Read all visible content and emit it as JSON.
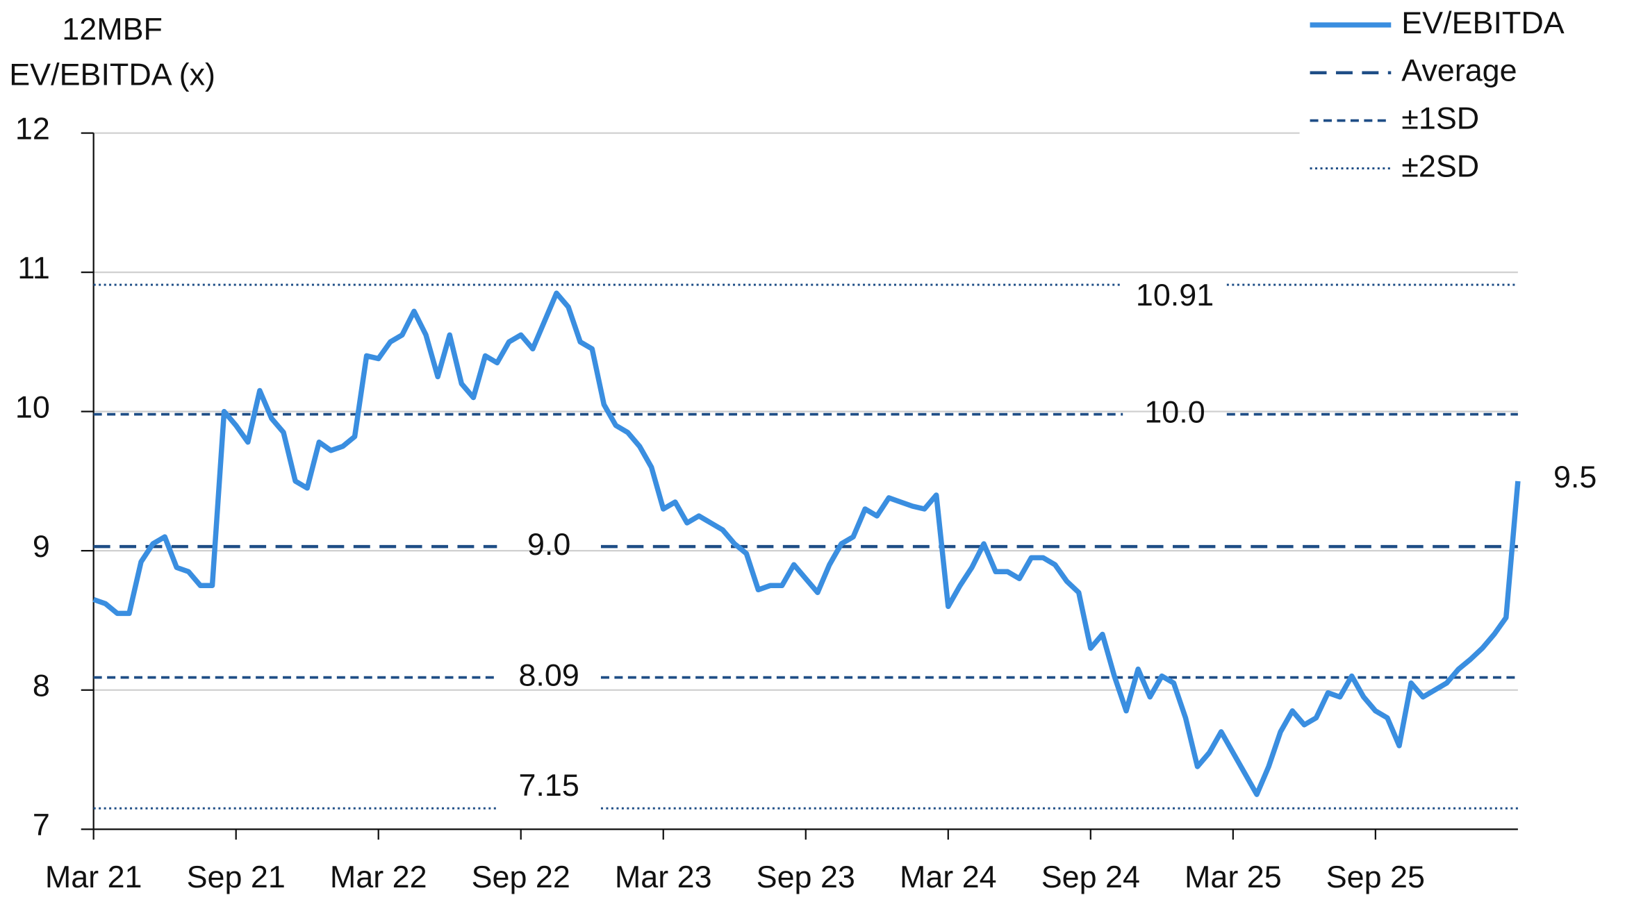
{
  "chart_data": {
    "type": "line",
    "y_label_lines": [
      "12MBF",
      "EV/EBITDA (x)"
    ],
    "categories": [
      "Mar 21",
      null,
      null,
      null,
      null,
      null,
      null,
      null,
      null,
      null,
      null,
      null,
      "Sep 21",
      null,
      null,
      null,
      null,
      null,
      null,
      null,
      null,
      null,
      null,
      null,
      "Mar 22",
      null,
      null,
      null,
      null,
      null,
      null,
      null,
      null,
      null,
      null,
      null,
      "Sep 22",
      null,
      null,
      null,
      null,
      null,
      null,
      null,
      null,
      null,
      null,
      null,
      "Mar 23",
      null,
      null,
      null,
      null,
      null,
      null,
      null,
      null,
      null,
      null,
      null,
      "Sep 23",
      null,
      null,
      null,
      null,
      null,
      null,
      null,
      null,
      null,
      null,
      null,
      "Mar 24",
      null,
      null,
      null,
      null,
      null,
      null,
      null,
      null,
      null,
      null,
      null,
      "Sep 24",
      null,
      null,
      null,
      null,
      null,
      null,
      null,
      null,
      null,
      null,
      null,
      "Mar 25",
      null,
      null,
      null,
      null,
      null,
      null,
      null,
      null,
      null,
      null,
      null,
      "Sep 25",
      null,
      null,
      null,
      null,
      null,
      null,
      null,
      null,
      null,
      null,
      null,
      null
    ],
    "series": [
      {
        "name": "EV/EBITDA",
        "color": "#3a8ee0",
        "values": [
          8.65,
          8.62,
          8.55,
          8.55,
          8.92,
          9.05,
          9.1,
          8.88,
          8.85,
          8.75,
          8.75,
          10.0,
          9.9,
          9.78,
          10.15,
          9.95,
          9.85,
          9.5,
          9.45,
          9.78,
          9.72,
          9.75,
          9.82,
          10.4,
          10.38,
          10.5,
          10.55,
          10.72,
          10.55,
          10.25,
          10.55,
          10.2,
          10.1,
          10.4,
          10.35,
          10.5,
          10.55,
          10.45,
          10.65,
          10.85,
          10.75,
          10.5,
          10.45,
          10.05,
          9.9,
          9.85,
          9.75,
          9.6,
          9.3,
          9.35,
          9.2,
          9.25,
          9.2,
          9.15,
          9.05,
          8.98,
          8.72,
          8.75,
          8.75,
          8.9,
          8.8,
          8.7,
          8.9,
          9.05,
          9.1,
          9.3,
          9.25,
          9.38,
          9.35,
          9.32,
          9.3,
          9.4,
          8.6,
          8.75,
          8.88,
          9.05,
          8.85,
          8.85,
          8.8,
          8.95,
          8.95,
          8.9,
          8.78,
          8.7,
          8.3,
          8.4,
          8.1,
          7.85,
          8.15,
          7.95,
          8.1,
          8.05,
          7.8,
          7.45,
          7.55,
          7.7,
          7.55,
          7.4,
          7.25,
          7.45,
          7.7,
          7.85,
          7.75,
          7.8,
          7.98,
          7.95,
          8.1,
          7.95,
          7.85,
          7.8,
          7.6,
          8.05,
          7.95,
          8.0,
          8.05,
          8.15,
          8.22,
          8.3,
          8.4,
          8.52,
          9.5
        ]
      }
    ],
    "reference_lines": [
      {
        "name": "Average",
        "color": "#1f4e86",
        "style": "dashed",
        "lines": [
          {
            "value": 9.03,
            "label": "9.0"
          }
        ]
      },
      {
        "name": "±1SD",
        "color": "#1f4e86",
        "style": "short-dashed",
        "lines": [
          {
            "value": 9.98,
            "label": "10.0"
          },
          {
            "value": 8.09
          }
        ]
      },
      {
        "name": "±2SD",
        "color": "#1f4e86",
        "style": "dotted",
        "lines": [
          {
            "value": 10.91
          },
          {
            "value": 7.15
          }
        ]
      }
    ],
    "ylim": [
      7,
      12
    ],
    "yticks": [
      7,
      8,
      9,
      10,
      11,
      12
    ],
    "grid": true,
    "legend": "top-right"
  }
}
